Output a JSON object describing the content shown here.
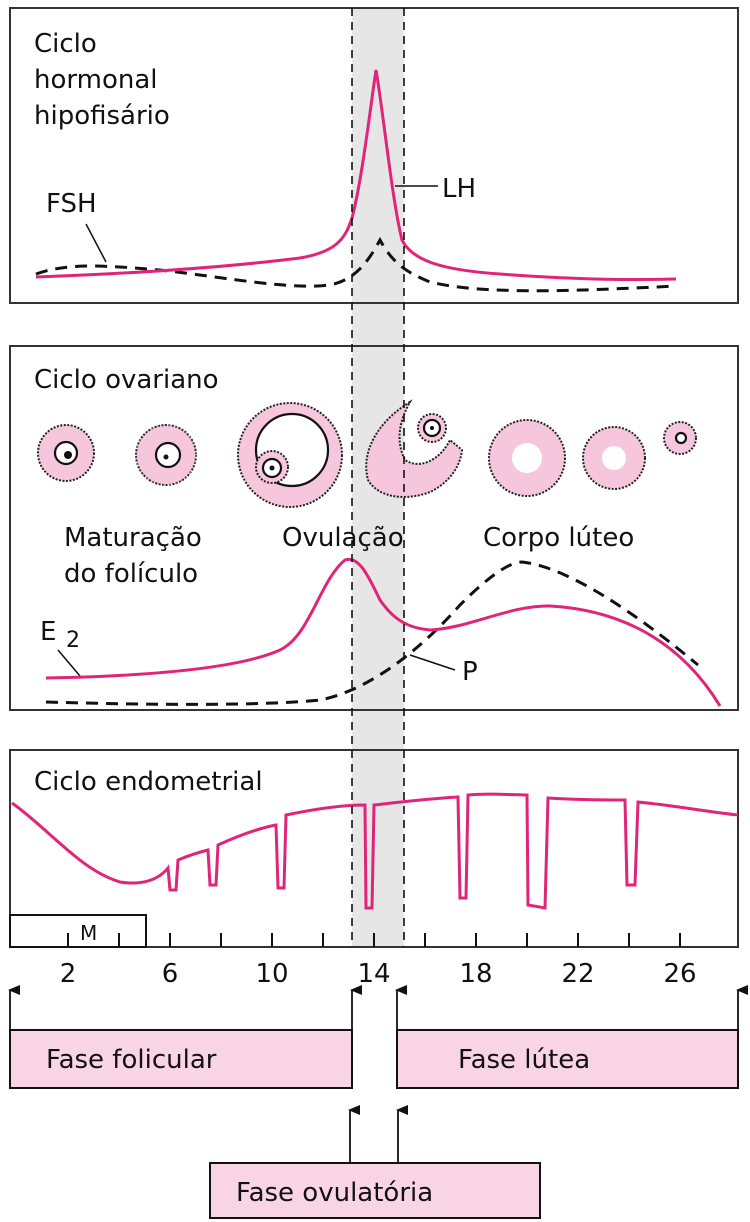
{
  "colors": {
    "accent": "#e0247a",
    "phase_box": "#f9d4e4",
    "ovulation_band": "#e6e6e6"
  },
  "panel1": {
    "title_lines": [
      "Ciclo",
      "hormonal",
      "hipofisário"
    ],
    "label_fsh": "FSH",
    "label_lh": "LH"
  },
  "panel2": {
    "title": "Ciclo ovariano",
    "label_maturation_1": "Maturação",
    "label_maturation_2": "do folículo",
    "label_ovulation": "Ovulação",
    "label_corpus": "Corpo lúteo",
    "label_e": "E",
    "label_e_sub": "2",
    "label_p": "P"
  },
  "panel3": {
    "title": "Ciclo endometrial",
    "label_m": "M"
  },
  "axis": {
    "tick_labels": [
      "2",
      "6",
      "10",
      "14",
      "18",
      "22",
      "26"
    ]
  },
  "phases": {
    "follicular": "Fase folicular",
    "luteal": "Fase lútea",
    "ovulatory": "Fase ovulatória"
  }
}
